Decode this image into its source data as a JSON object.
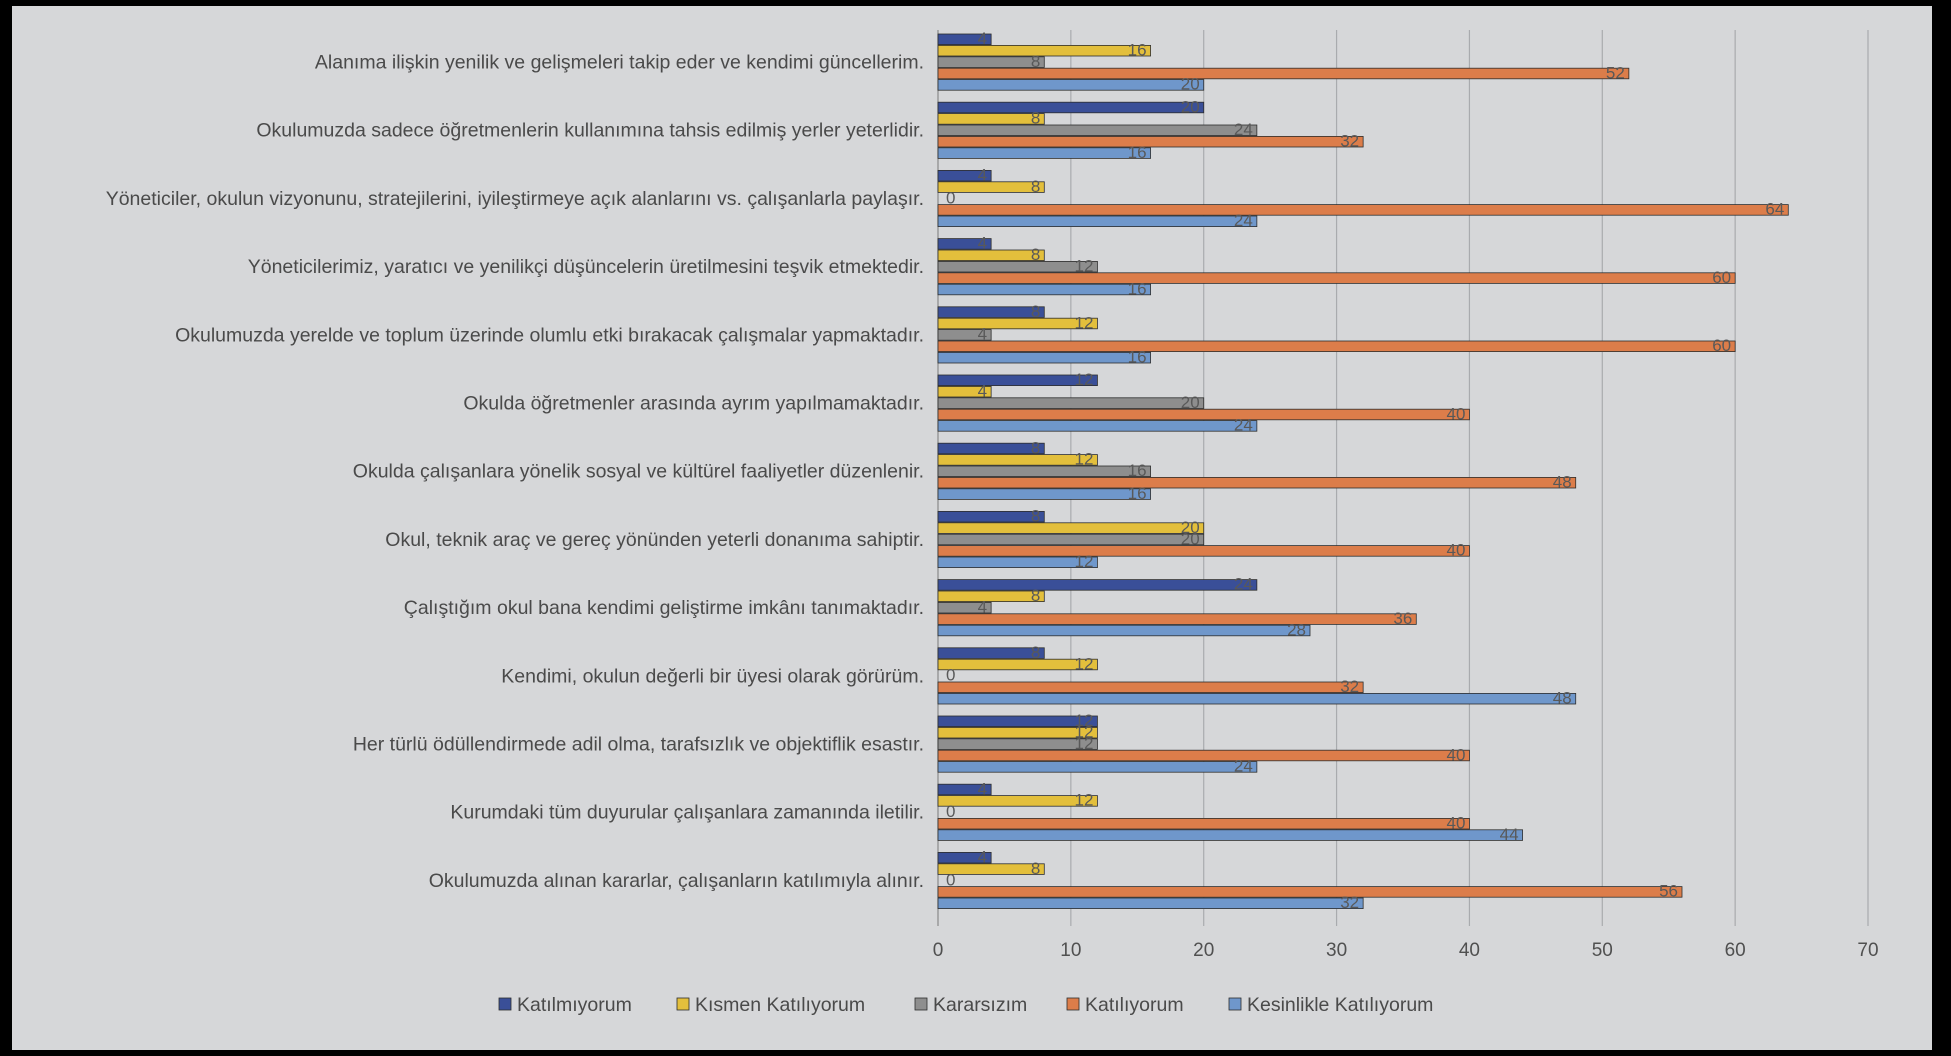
{
  "chart_data": {
    "type": "bar",
    "orientation": "horizontal",
    "title": "",
    "xlabel": "",
    "ylabel": "",
    "xlim": [
      0,
      70
    ],
    "x_ticks": [
      0,
      10,
      20,
      30,
      40,
      50,
      60,
      70
    ],
    "grid": "vertical",
    "legend_position": "bottom",
    "data_labels": true,
    "categories": [
      "Alanıma ilişkin yenilik ve gelişmeleri takip eder ve kendimi güncellerim.",
      "Okulumuzda sadece öğretmenlerin kullanımına tahsis edilmiş yerler yeterlidir.",
      "Yöneticiler, okulun vizyonunu, stratejilerini, iyileştirmeye açık alanlarını vs. çalışanlarla paylaşır.",
      "Yöneticilerimiz, yaratıcı ve yenilikçi düşüncelerin üretilmesini teşvik etmektedir.",
      "Okulumuzda yerelde ve toplum üzerinde olumlu etki bırakacak çalışmalar yapmaktadır.",
      "Okulda öğretmenler arasında ayrım yapılmamaktadır.",
      "Okulda çalışanlara yönelik sosyal ve kültürel faaliyetler düzenlenir.",
      "Okul, teknik araç ve gereç yönünden yeterli donanıma sahiptir.",
      "Çalıştığım okul bana kendimi geliştirme imkânı tanımaktadır.",
      "Kendimi, okulun değerli bir üyesi olarak görürüm.",
      "Her türlü ödüllendirmede adil olma, tarafsızlık ve objektiflik esastır.",
      "Kurumdaki tüm duyurular çalışanlara zamanında iletilir.",
      "Okulumuzda alınan kararlar, çalışanların katılımıyla alınır."
    ],
    "series": [
      {
        "name": "Katılmıyorum",
        "color": "#3a4f98",
        "values": [
          4,
          20,
          4,
          4,
          8,
          12,
          8,
          8,
          24,
          8,
          12,
          4,
          4
        ]
      },
      {
        "name": "Kısmen Katılıyorum",
        "color": "#e3bf3c",
        "values": [
          16,
          8,
          8,
          8,
          12,
          4,
          12,
          20,
          8,
          12,
          12,
          12,
          8
        ]
      },
      {
        "name": "Kararsızım",
        "color": "#8e8e8e",
        "values": [
          8,
          24,
          0,
          12,
          4,
          20,
          16,
          20,
          4,
          0,
          12,
          0,
          0
        ]
      },
      {
        "name": "Katılıyorum",
        "color": "#dc7d4a",
        "values": [
          52,
          32,
          64,
          60,
          60,
          40,
          48,
          40,
          36,
          32,
          40,
          40,
          56
        ]
      },
      {
        "name": "Kesinlikle Katılıyorum",
        "color": "#6f97cb",
        "values": [
          20,
          16,
          24,
          16,
          16,
          24,
          16,
          12,
          28,
          48,
          24,
          44,
          32
        ]
      }
    ]
  }
}
